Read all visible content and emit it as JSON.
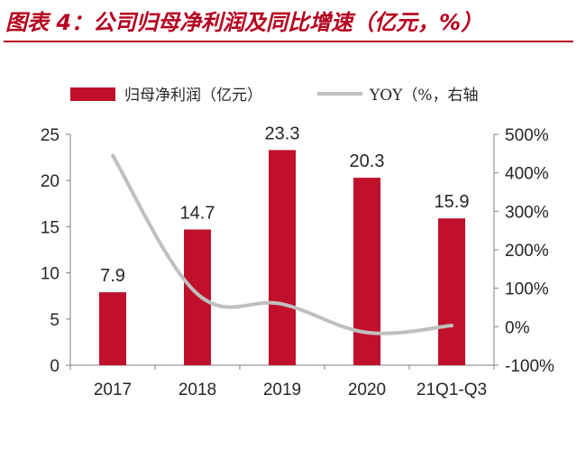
{
  "title": "图表 4：公司归母净利润及同比增速（亿元，%）",
  "chart_data": {
    "type": "bar+line",
    "categories": [
      "2017",
      "2018",
      "2019",
      "2020",
      "21Q1-Q3"
    ],
    "series": [
      {
        "name": "归母净利润（亿元）",
        "type": "bar",
        "axis": "left",
        "color": "#c0102c",
        "values": [
          7.9,
          14.7,
          23.3,
          20.3,
          15.9
        ]
      },
      {
        "name": "YOY（%，右轴",
        "type": "line",
        "axis": "right",
        "color": "#bfbfbf",
        "values": [
          445,
          85,
          59,
          -15,
          3
        ]
      }
    ],
    "y_left": {
      "min": 0,
      "max": 25,
      "ticks": [
        "0",
        "5",
        "10",
        "15",
        "20",
        "25"
      ]
    },
    "y_right": {
      "min": -100,
      "max": 500,
      "ticks": [
        "-100%",
        "0%",
        "100%",
        "200%",
        "300%",
        "400%",
        "500%"
      ]
    },
    "data_labels": [
      "7.9",
      "14.7",
      "23.3",
      "20.3",
      "15.9"
    ],
    "legend_position": "top",
    "grid": false
  }
}
